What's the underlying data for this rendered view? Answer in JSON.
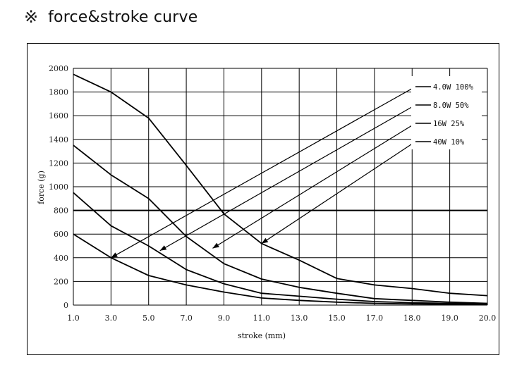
{
  "header": {
    "mark": "※",
    "title": "force&stroke curve"
  },
  "chart_data": {
    "type": "line",
    "title": "force&stroke curve",
    "xlabel": "stroke (mm)",
    "ylabel": "force (g)",
    "x_ticks": [
      "1.0",
      "3.0",
      "5.0",
      "7.0",
      "9.0",
      "11.0",
      "13.0",
      "15.0",
      "17.0",
      "18.0",
      "19.0",
      "20.0"
    ],
    "y_ticks": [
      "0",
      "200",
      "400",
      "600",
      "800",
      "1000",
      "1200",
      "1400",
      "1600",
      "1800",
      "2000"
    ],
    "ylim": [
      0,
      2000
    ],
    "grid": true,
    "legend_position": "top-right",
    "series": [
      {
        "name": "4.0W 100%",
        "values": [
          1950,
          1800,
          1580,
          1180,
          770,
          520,
          380,
          225,
          170,
          140,
          100,
          80
        ]
      },
      {
        "name": "8.0W 50%",
        "values": [
          1350,
          1100,
          900,
          580,
          350,
          220,
          150,
          100,
          55,
          40,
          25,
          15
        ]
      },
      {
        "name": "16W 25%",
        "values": [
          950,
          670,
          500,
          300,
          180,
          100,
          75,
          50,
          30,
          20,
          15,
          10
        ]
      },
      {
        "name": "40W 10%",
        "values": [
          600,
          400,
          250,
          170,
          110,
          60,
          40,
          25,
          15,
          10,
          8,
          5
        ]
      }
    ],
    "legend_arrow_targets": [
      {
        "x_index": 1,
        "value": 400
      },
      {
        "x_index": 2.3,
        "value": 460
      },
      {
        "x_index": 3.7,
        "value": 480
      },
      {
        "x_index": 5,
        "value": 520
      }
    ],
    "reference_line_value": 800
  }
}
